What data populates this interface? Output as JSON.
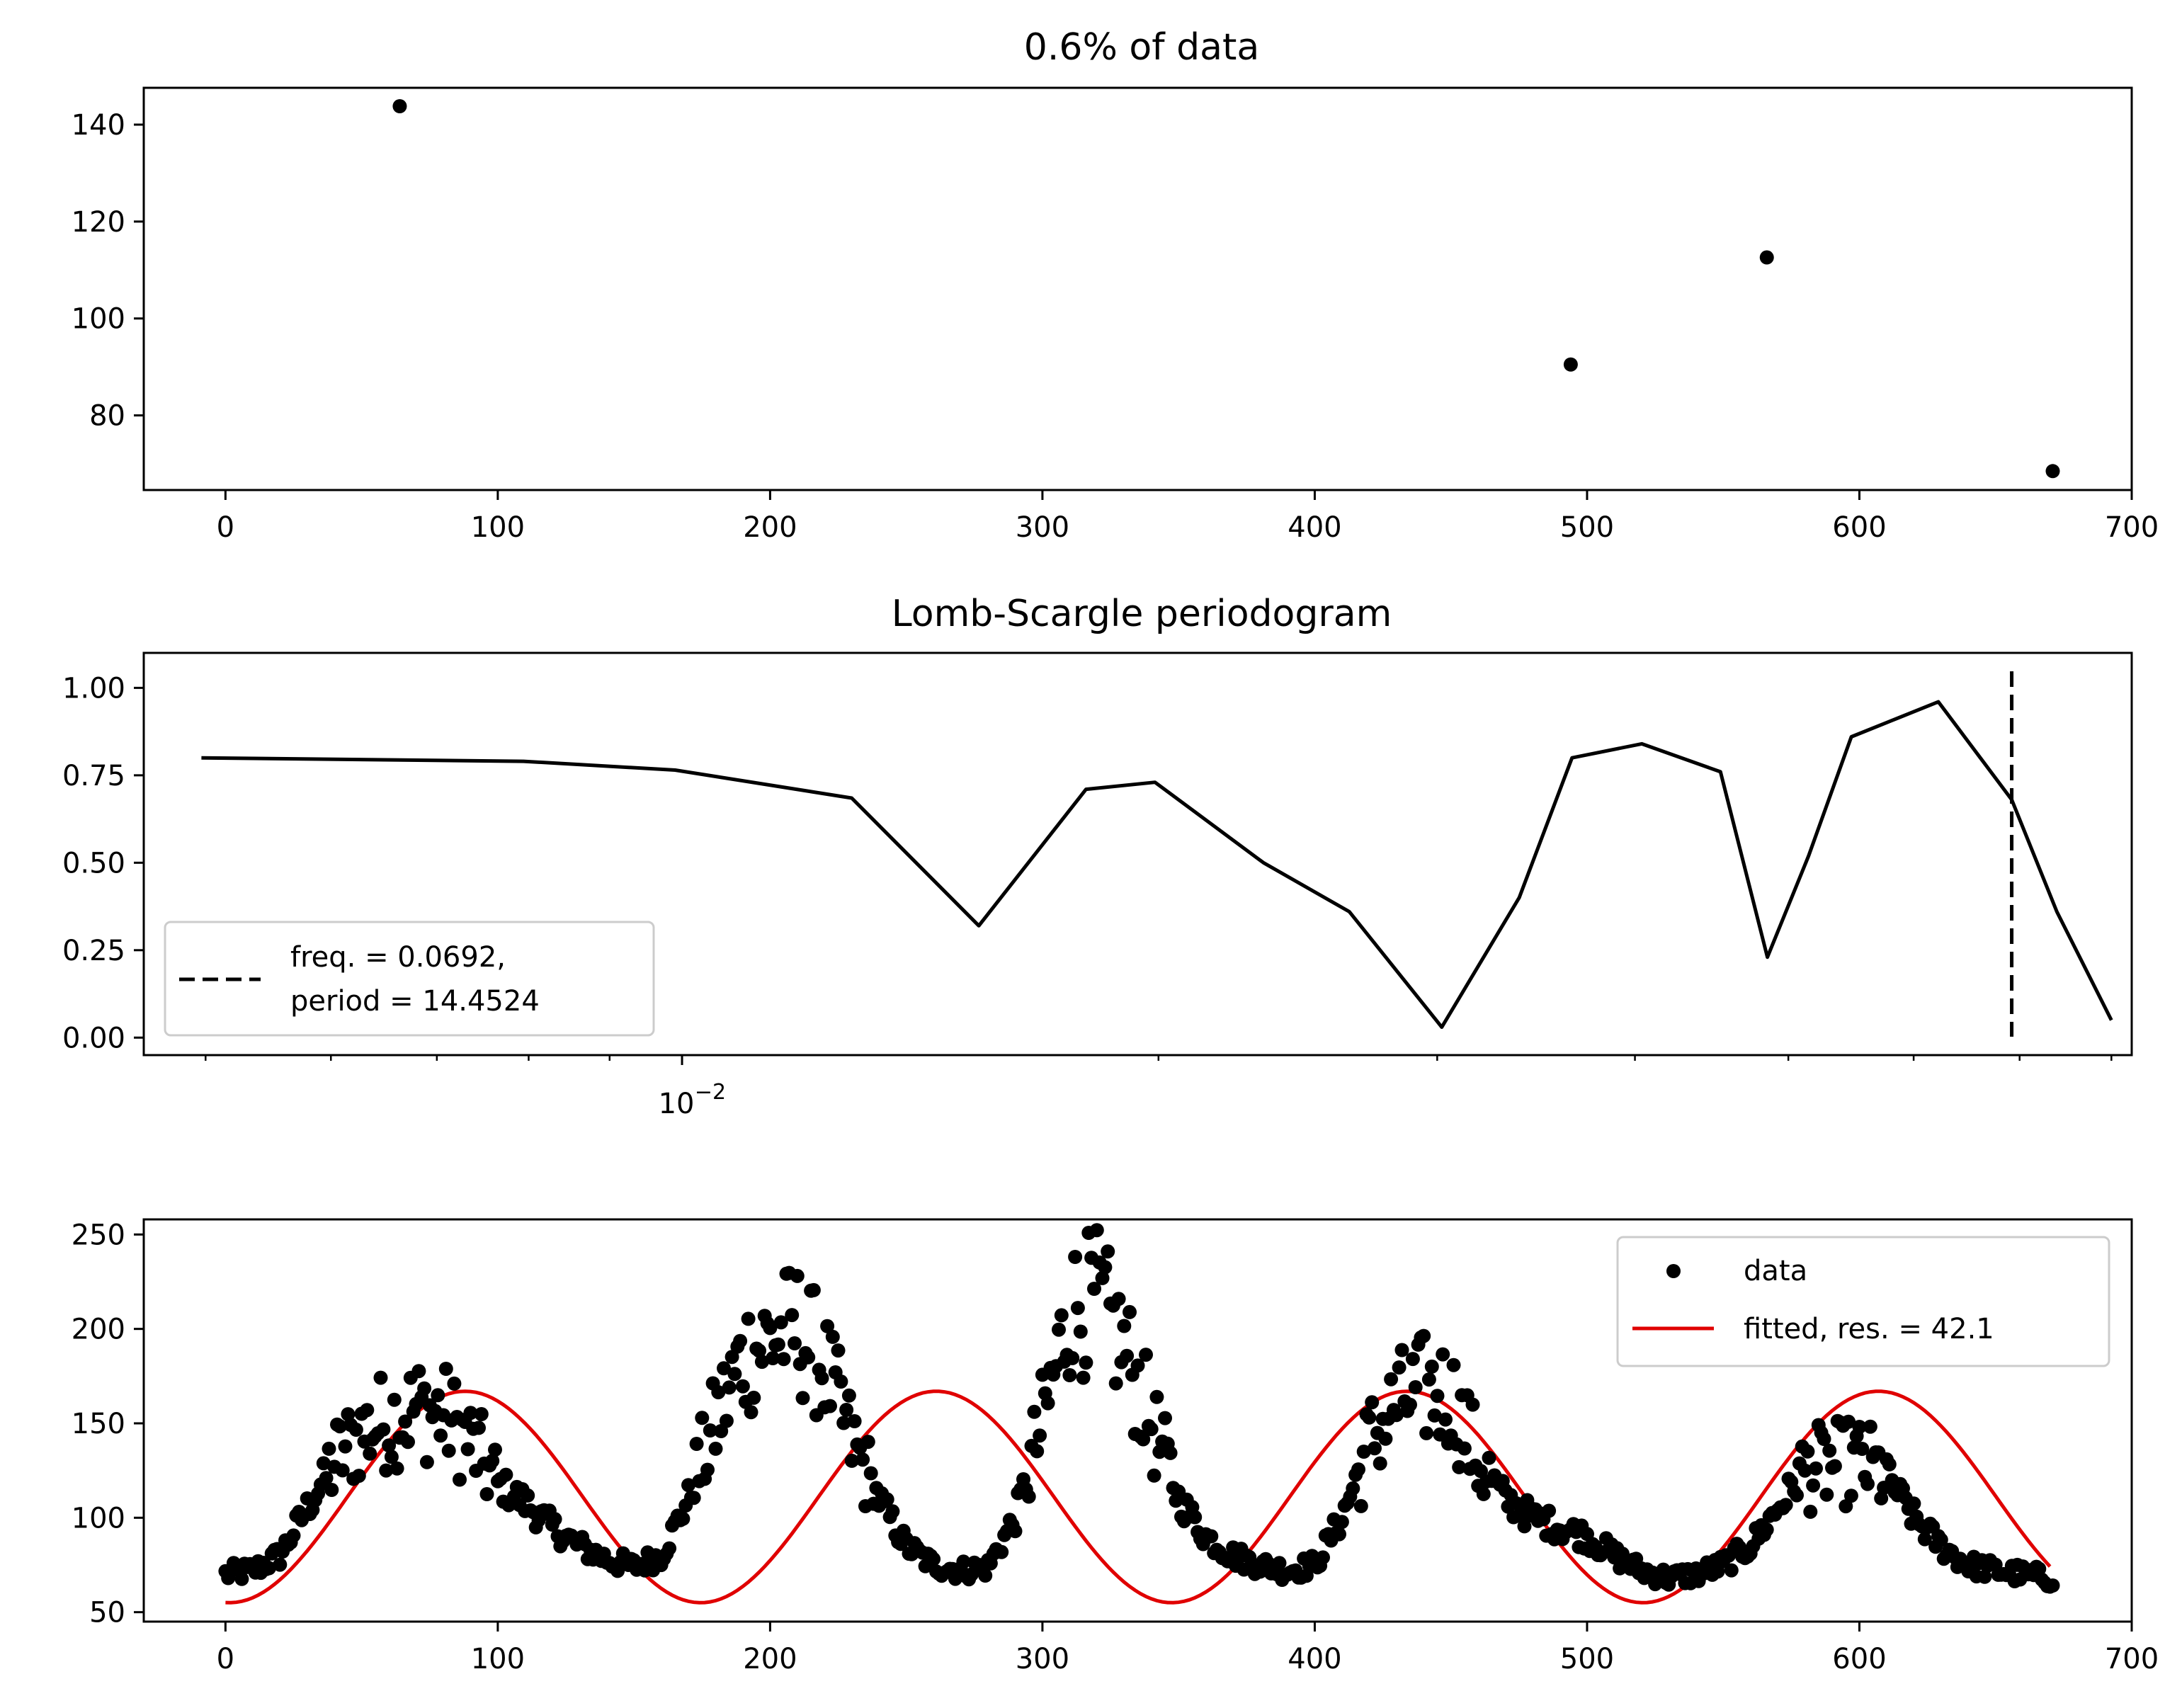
{
  "figure": {
    "background": "#ffffff"
  },
  "chart_data": [
    {
      "type": "scatter",
      "title": "0.6% of data",
      "xlim": [
        -30,
        700
      ],
      "ylim": [
        64.6,
        147.6
      ],
      "xticks": [
        0,
        100,
        200,
        300,
        400,
        500,
        600,
        700
      ],
      "yticks": [
        80,
        100,
        120,
        140
      ],
      "marker_color": "#000000",
      "points": [
        {
          "x": 64,
          "y": 143.8
        },
        {
          "x": 494,
          "y": 90.5
        },
        {
          "x": 566,
          "y": 112.6
        },
        {
          "x": 671,
          "y": 68.5
        }
      ]
    },
    {
      "type": "line",
      "title": "Lomb-Scargle periodogram",
      "xscale": "log",
      "xlim": [
        0.00457,
        0.0824
      ],
      "ylim": [
        -0.05,
        1.1
      ],
      "yticks": [
        0.0,
        0.25,
        0.5,
        0.75,
        1.0
      ],
      "ytick_labels": [
        "0.00",
        "0.25",
        "0.50",
        "0.75",
        "1.00"
      ],
      "xtick_major": 0.01,
      "xtick_label": "10",
      "xtick_label_exponent": "−2",
      "line_color": "#000000",
      "x": [
        0.00497,
        0.00794,
        0.0099,
        0.0128,
        0.0154,
        0.018,
        0.0199,
        0.0233,
        0.0264,
        0.0302,
        0.0338,
        0.0365,
        0.0404,
        0.0453,
        0.0485,
        0.0515,
        0.0548,
        0.0622,
        0.0692,
        0.0739,
        0.08
      ],
      "y": [
        0.8,
        0.79,
        0.765,
        0.685,
        0.32,
        0.71,
        0.73,
        0.5,
        0.36,
        0.03,
        0.4,
        0.8,
        0.84,
        0.76,
        0.23,
        0.52,
        0.86,
        0.96,
        0.68,
        0.36,
        0.05
      ],
      "vline": {
        "x": 0.0692,
        "style": "dashed",
        "color": "#000000"
      },
      "legend": {
        "placement": "lower-left",
        "lines": [
          "freq. = 0.0692,",
          "period = 14.4524"
        ]
      }
    },
    {
      "type": "scatter",
      "title": "",
      "xlim": [
        -30,
        700
      ],
      "ylim": [
        45,
        258
      ],
      "xticks": [
        0,
        100,
        200,
        300,
        400,
        500,
        600,
        700
      ],
      "yticks": [
        50,
        100,
        150,
        200,
        250
      ],
      "marker_color": "#000000",
      "fit_color": "#e00000",
      "data_envelope": {
        "t": [
          0,
          10,
          20,
          30,
          40,
          50,
          60,
          70,
          80,
          90,
          100,
          110,
          120,
          130,
          140,
          150,
          160,
          170,
          180,
          190,
          200,
          210,
          220,
          230,
          240,
          250,
          260,
          270,
          280,
          290,
          300,
          310,
          320,
          330,
          340,
          350,
          360,
          370,
          380,
          390,
          400,
          410,
          420,
          430,
          440,
          450,
          460,
          470,
          480,
          490,
          500,
          510,
          520,
          530,
          540,
          550,
          560,
          570,
          580,
          590,
          600,
          610,
          620,
          630,
          640,
          650,
          660,
          670
        ],
        "v": [
          70,
          72,
          80,
          105,
          130,
          145,
          152,
          158,
          155,
          140,
          118,
          108,
          95,
          85,
          78,
          74,
          80,
          110,
          150,
          185,
          195,
          200,
          180,
          140,
          110,
          85,
          75,
          72,
          74,
          100,
          150,
          210,
          215,
          190,
          150,
          110,
          90,
          80,
          75,
          72,
          75,
          100,
          140,
          160,
          168,
          165,
          130,
          110,
          100,
          95,
          90,
          80,
          72,
          68,
          70,
          75,
          85,
          105,
          125,
          128,
          130,
          122,
          100,
          85,
          75,
          72,
          70,
          68
        ],
        "noise_amplitude": 0.13
      },
      "fit": {
        "mean": 111,
        "amplitude": 56,
        "period": 173,
        "peak_x": 88
      },
      "legend": {
        "placement": "top-right",
        "data_label": "data",
        "fit_label": "fitted, res. = 42.1"
      }
    }
  ]
}
